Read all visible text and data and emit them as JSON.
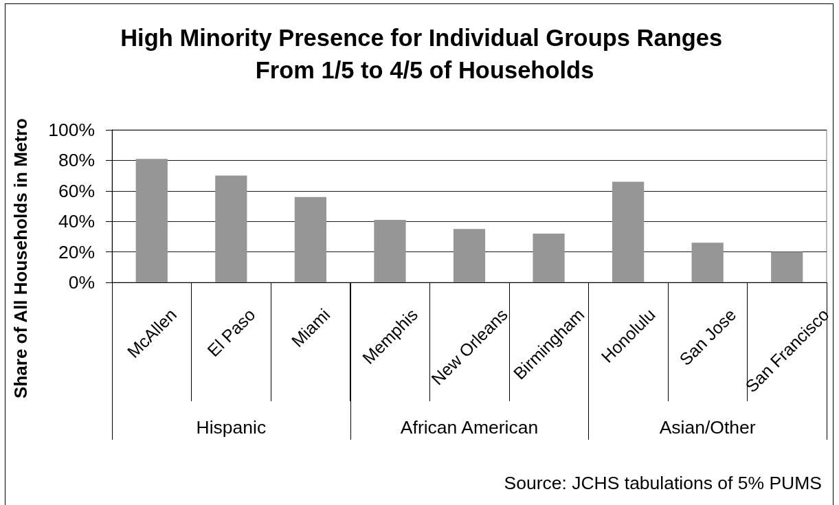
{
  "chart_data": {
    "type": "bar",
    "title": "High Minority Presence for Individual Groups Ranges From 1/5 to 4/5 of Households",
    "ylabel": "Share of All Households in Metro",
    "categories": [
      "McAllen",
      "El Paso",
      "Miami",
      "Memphis",
      "New Orleans",
      "Birmingham",
      "Honolulu",
      "San Jose",
      "San Francisco"
    ],
    "values": [
      81,
      70,
      56,
      41,
      35,
      32,
      66,
      26,
      20
    ],
    "color": "#969696",
    "ylim": [
      0,
      100
    ],
    "yticks": [
      {
        "value": 0,
        "label": "0%"
      },
      {
        "value": 20,
        "label": "20%"
      },
      {
        "value": 40,
        "label": "40%"
      },
      {
        "value": 60,
        "label": "60%"
      },
      {
        "value": 80,
        "label": "80%"
      },
      {
        "value": 100,
        "label": "100%"
      }
    ],
    "grid": "y",
    "annotations": [
      "Hispanic",
      "African American",
      "Asian/Other",
      "Source: JCHS tabulations of 5% PUMS"
    ]
  }
}
